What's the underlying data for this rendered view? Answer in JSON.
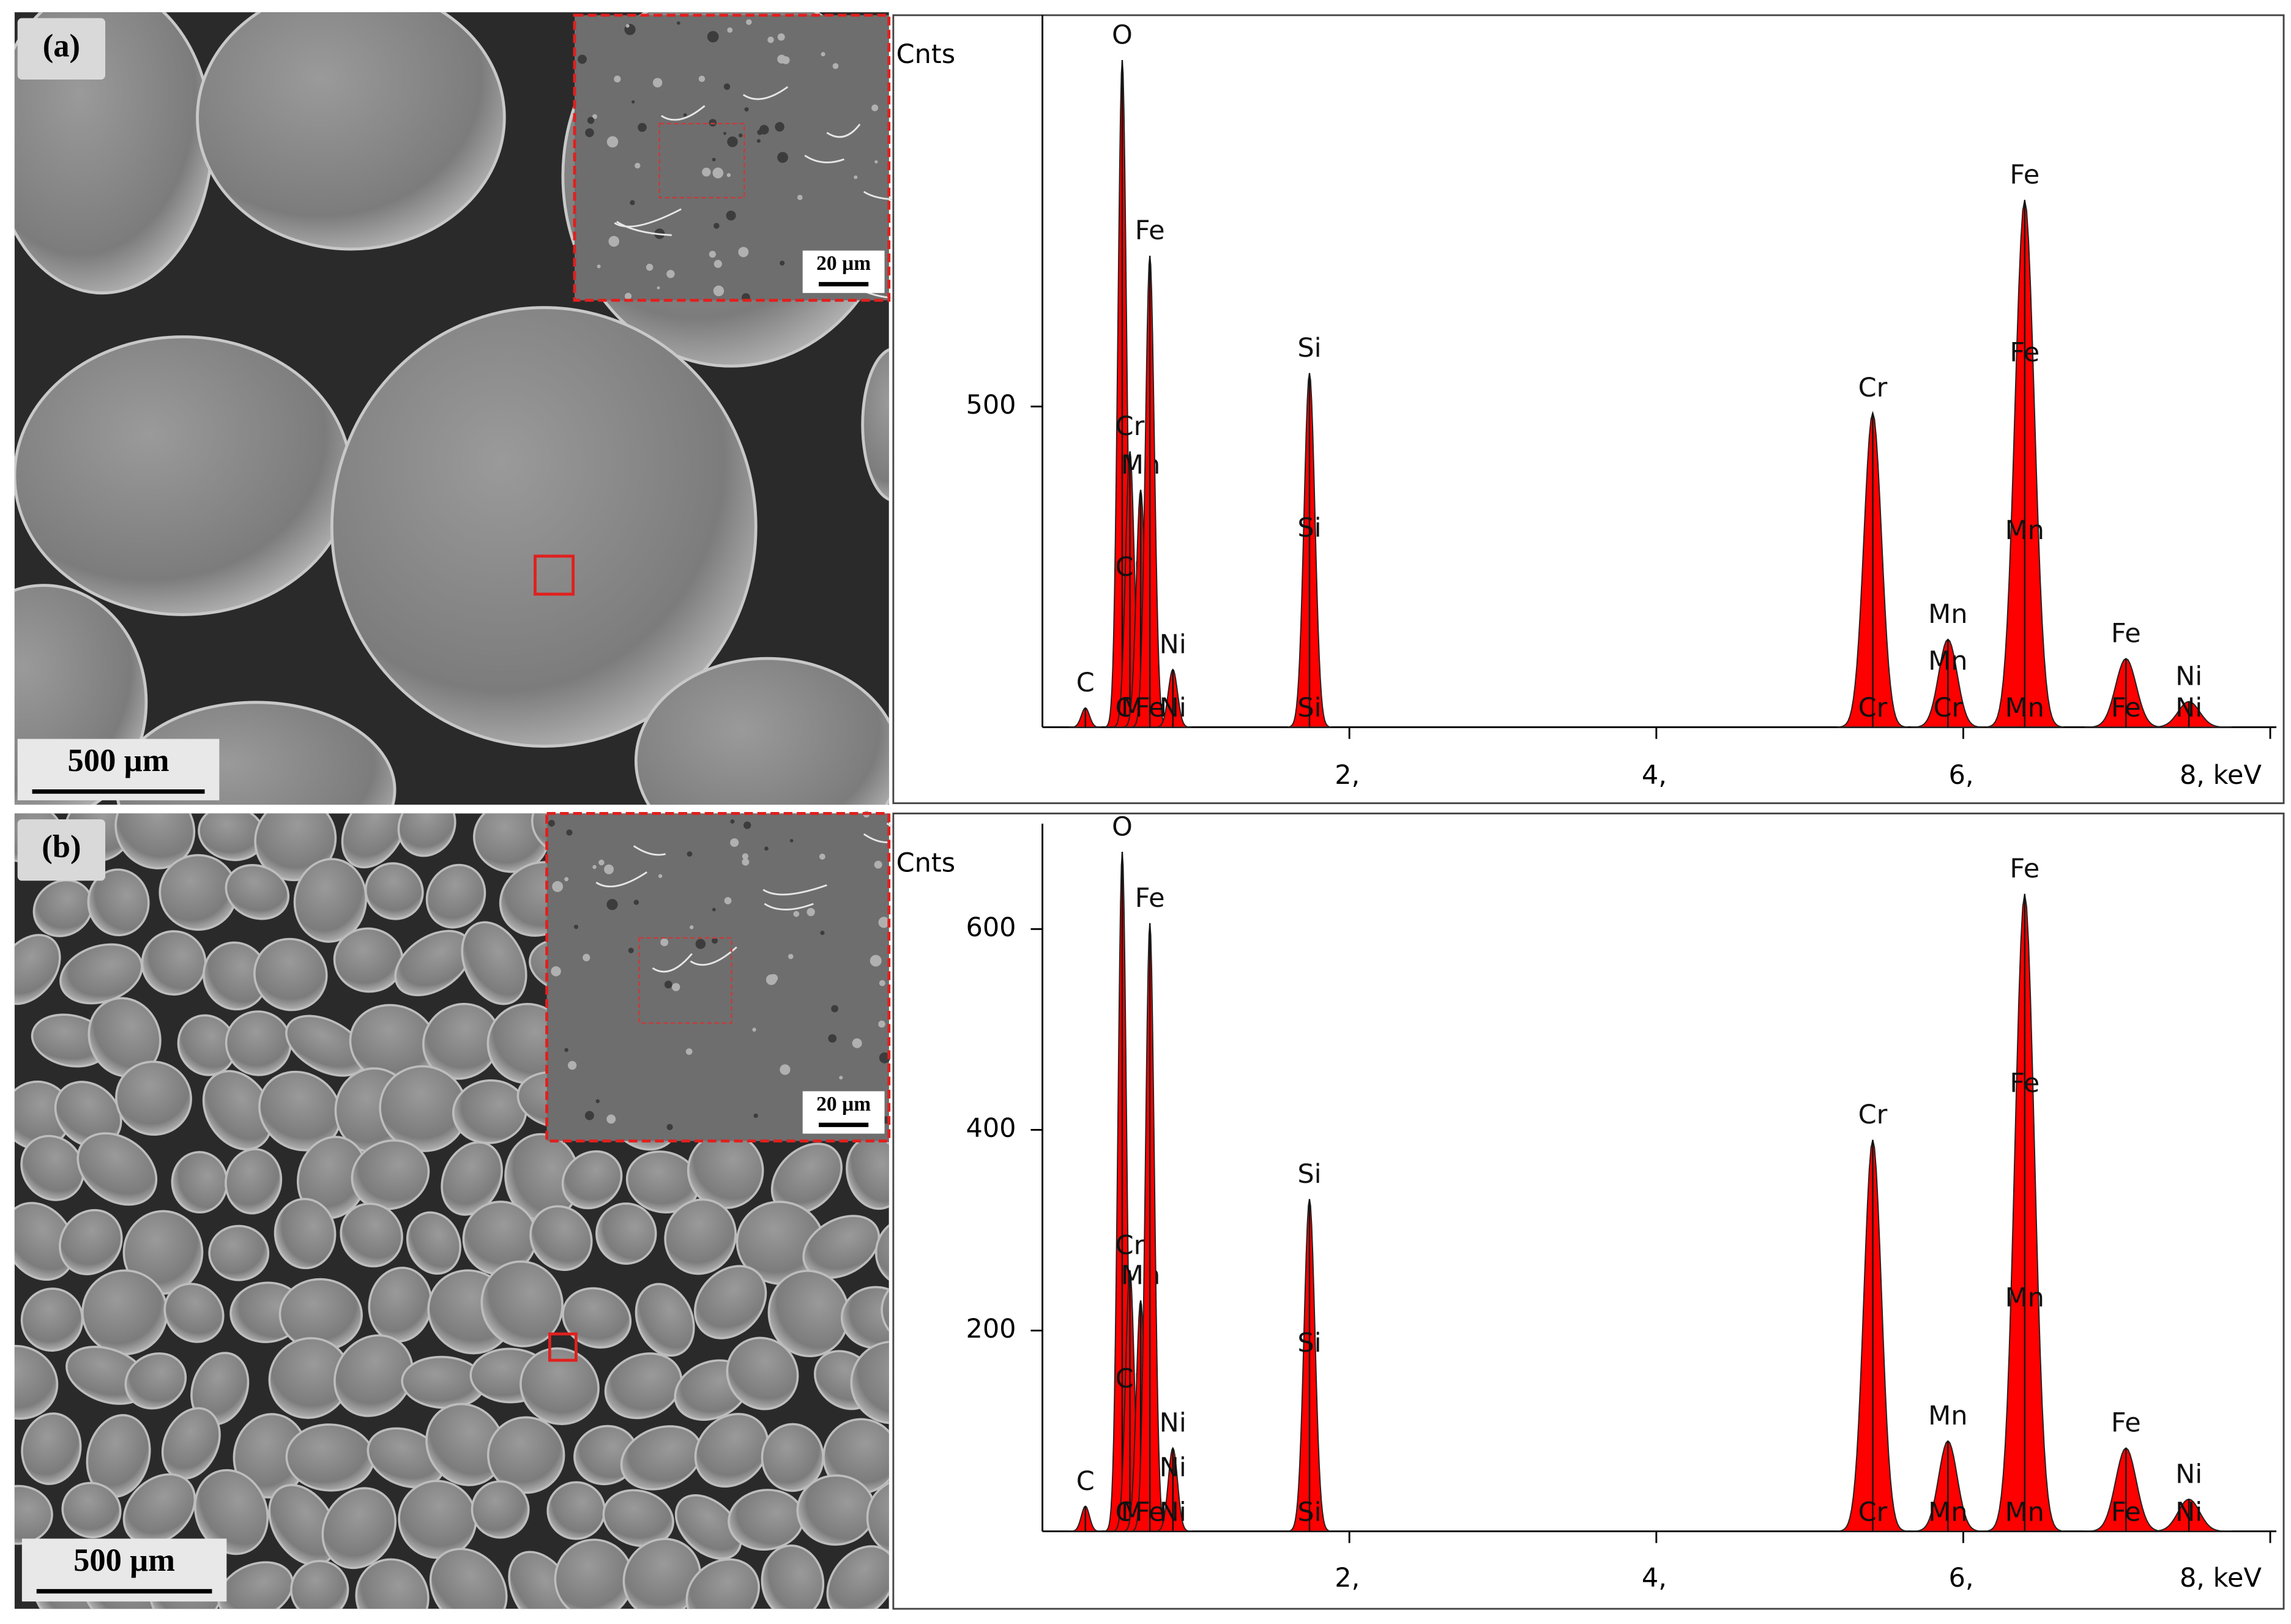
{
  "images": [
    {
      "label": "(a)",
      "scale_bar": "500 µm",
      "inset_scale_bar": "20 µm"
    },
    {
      "label": "(b)",
      "scale_bar": "500 µm",
      "inset_scale_bar": "20 µm"
    }
  ],
  "chart_data": [
    {
      "type": "eds",
      "ylabel": "Cnts",
      "color": "#ff0000",
      "xlim": [
        0,
        8.04
      ],
      "ylim": [
        0,
        1110
      ],
      "xticks": [
        {
          "value": 2,
          "label": "2,"
        },
        {
          "value": 4,
          "label": "4,"
        },
        {
          "value": 6,
          "label": "6,"
        },
        {
          "value": 8,
          "label": "8, keV"
        }
      ],
      "yticks": [
        500
      ],
      "peaks": [
        {
          "energy": 0.28,
          "counts": 30,
          "labels": [
            "C"
          ]
        },
        {
          "energy": 0.52,
          "counts": 1040,
          "labels": [
            "O"
          ]
        },
        {
          "energy": 0.57,
          "counts": 430,
          "labels": [
            "Cr",
            "Cr",
            "Cr"
          ]
        },
        {
          "energy": 0.64,
          "counts": 370,
          "labels": [
            "Mn",
            "Mn"
          ]
        },
        {
          "energy": 0.7,
          "counts": 735,
          "labels": [
            "Fe",
            "Fe"
          ]
        },
        {
          "energy": 0.85,
          "counts": 90,
          "labels": [
            "Ni",
            "Ni"
          ]
        },
        {
          "energy": 1.74,
          "counts": 552,
          "labels": [
            "Si",
            "Si",
            "Si"
          ]
        },
        {
          "energy": 5.41,
          "counts": 490,
          "labels": [
            "Cr",
            "Cr"
          ]
        },
        {
          "energy": 5.9,
          "counts": 137,
          "labels": [
            "Mn",
            "Mn",
            "Cr"
          ]
        },
        {
          "energy": 6.4,
          "counts": 822,
          "labels": [
            "Fe",
            "Fe",
            "Mn",
            "Mn"
          ]
        },
        {
          "energy": 7.06,
          "counts": 107,
          "labels": [
            "Fe",
            "Fe"
          ]
        },
        {
          "energy": 7.47,
          "counts": 40,
          "labels": [
            "Ni",
            "Ni"
          ]
        }
      ]
    },
    {
      "type": "eds",
      "ylabel": "Cnts",
      "color": "#ff0000",
      "xlim": [
        0,
        8.04
      ],
      "ylim": [
        0,
        705
      ],
      "xticks": [
        {
          "value": 2,
          "label": "2,"
        },
        {
          "value": 4,
          "label": "4,"
        },
        {
          "value": 6,
          "label": "6,"
        },
        {
          "value": 8,
          "label": "8, keV"
        }
      ],
      "yticks": [
        200,
        400,
        600
      ],
      "peaks": [
        {
          "energy": 0.28,
          "counts": 25,
          "labels": [
            "C"
          ]
        },
        {
          "energy": 0.52,
          "counts": 677,
          "labels": [
            "O"
          ]
        },
        {
          "energy": 0.57,
          "counts": 260,
          "labels": [
            "Cr",
            "Cr",
            "Cr"
          ]
        },
        {
          "energy": 0.64,
          "counts": 230,
          "labels": [
            "Mn",
            "Mn"
          ]
        },
        {
          "energy": 0.7,
          "counts": 606,
          "labels": [
            "Fe",
            "Fe"
          ]
        },
        {
          "energy": 0.85,
          "counts": 83,
          "labels": [
            "Ni",
            "Ni",
            "Ni"
          ]
        },
        {
          "energy": 1.74,
          "counts": 331,
          "labels": [
            "Si",
            "Si",
            "Si"
          ]
        },
        {
          "energy": 5.41,
          "counts": 390,
          "labels": [
            "Cr",
            "Cr"
          ]
        },
        {
          "energy": 5.9,
          "counts": 90,
          "labels": [
            "Mn",
            "Mn"
          ]
        },
        {
          "energy": 6.4,
          "counts": 635,
          "labels": [
            "Fe",
            "Fe",
            "Mn",
            "Mn"
          ]
        },
        {
          "energy": 7.06,
          "counts": 83,
          "labels": [
            "Fe",
            "Fe"
          ]
        },
        {
          "energy": 7.47,
          "counts": 32,
          "labels": [
            "Ni",
            "Ni"
          ]
        }
      ]
    }
  ]
}
